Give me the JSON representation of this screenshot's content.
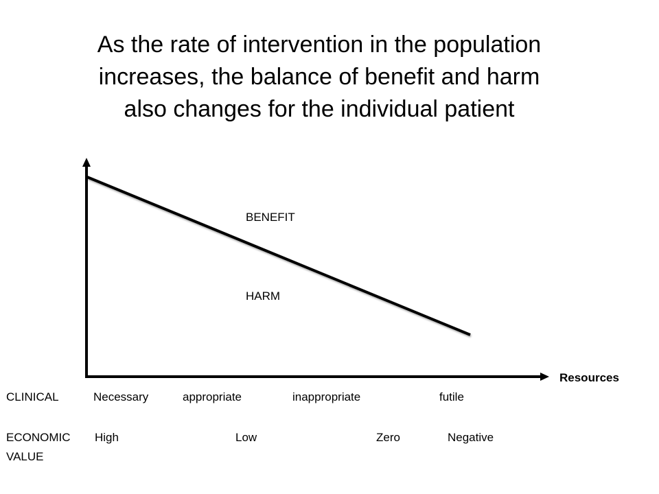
{
  "title": {
    "line1": "As the rate of  intervention in the population",
    "line2": "increases, the balance of benefit and harm",
    "line3": "also changes for the individual patient"
  },
  "diagram": {
    "benefit_label": "BENEFIT",
    "harm_label": "HARM",
    "x_axis_label": "Resources"
  },
  "rows": {
    "clinical": {
      "label": "CLINICAL",
      "values": [
        "Necessary",
        "appropriate",
        "inappropriate",
        "futile"
      ]
    },
    "economic": {
      "label_line1": "ECONOMIC",
      "label_line2": "VALUE",
      "values": [
        "High",
        "Low",
        "Zero",
        "Negative"
      ]
    }
  }
}
